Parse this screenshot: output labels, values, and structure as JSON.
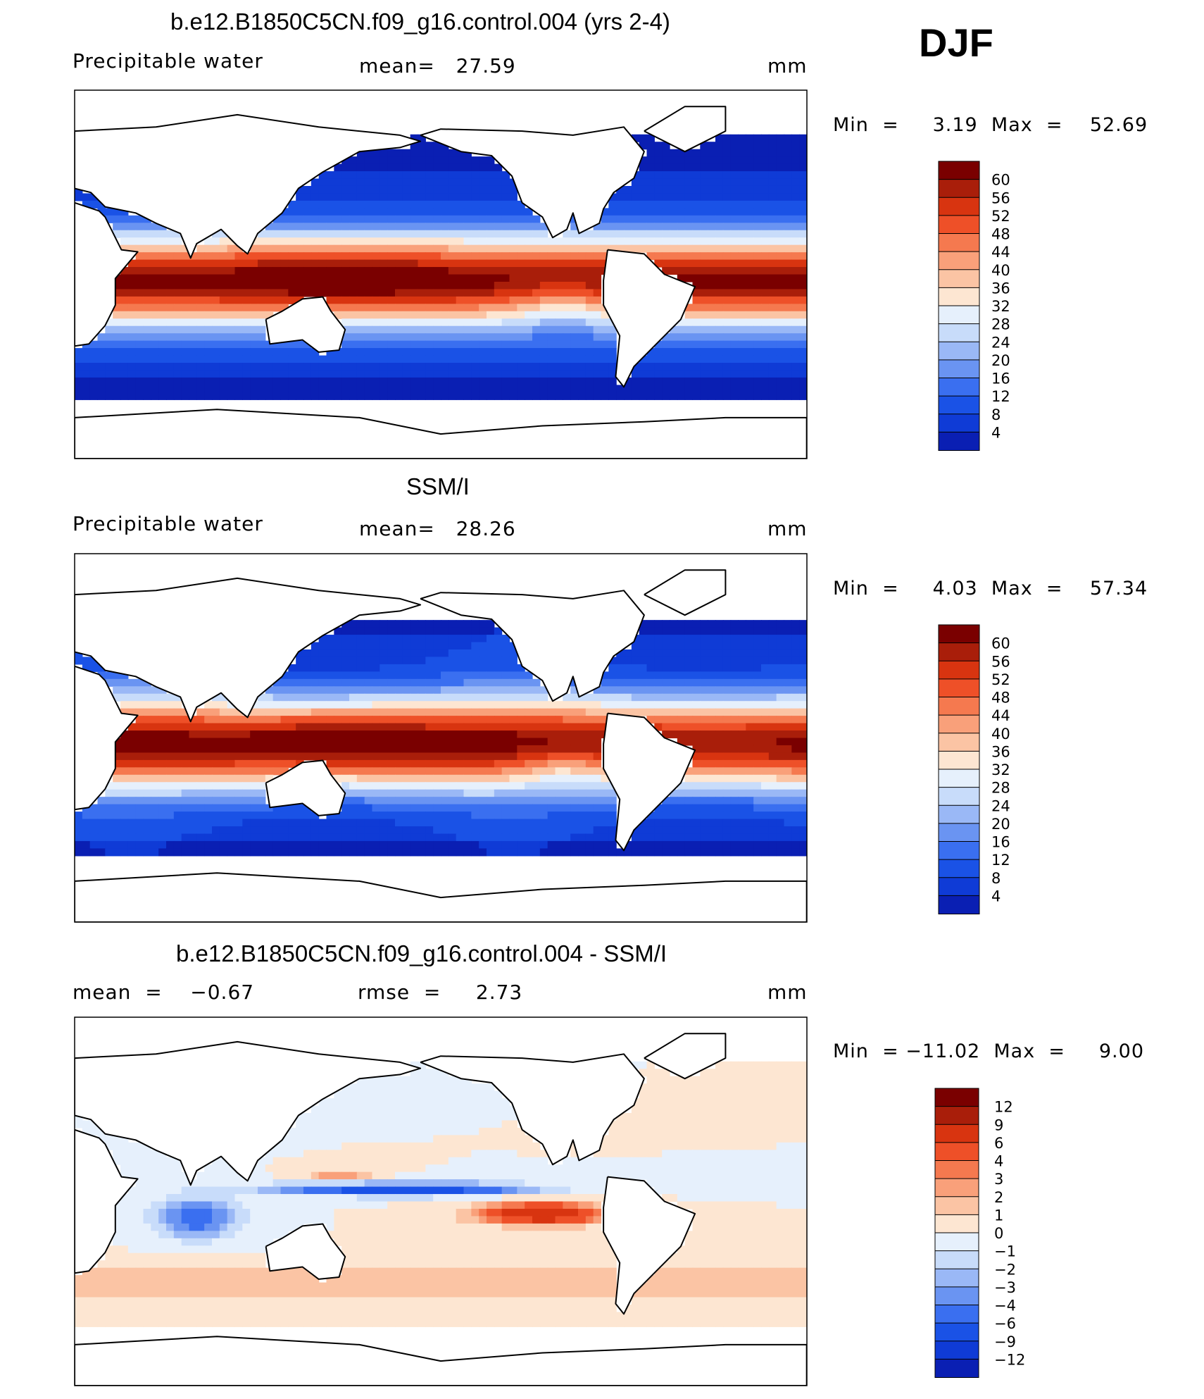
{
  "season": "DJF",
  "panels": [
    {
      "title": "b.e12.B1850C5CN.f09_g16.control.004 (yrs 2-4)",
      "left_label": "Precipitable water",
      "center_label": "mean=   27.59",
      "units": "mm",
      "minmax": "Min  =     3.19  Max  =    52.69",
      "colorbar_labels": [
        "60",
        "56",
        "52",
        "48",
        "44",
        "40",
        "36",
        "32",
        "28",
        "24",
        "20",
        "16",
        "12",
        "8",
        "4"
      ]
    },
    {
      "title": "SSM/I",
      "left_label": "Precipitable water",
      "center_label": "mean=   28.26",
      "units": "mm",
      "minmax": "Min  =     4.03  Max  =    57.34",
      "colorbar_labels": [
        "60",
        "56",
        "52",
        "48",
        "44",
        "40",
        "36",
        "32",
        "28",
        "24",
        "20",
        "16",
        "12",
        "8",
        "4"
      ]
    },
    {
      "title": "b.e12.B1850C5CN.f09_g16.control.004 - SSM/I",
      "left_label": "mean  =    −0.67",
      "center_label": "rmse  =     2.73",
      "units": "mm",
      "minmax": "Min  = −11.02  Max  =     9.00",
      "colorbar_labels": [
        "12",
        "9",
        "6",
        "4",
        "3",
        "2",
        "1",
        "0",
        "−1",
        "−2",
        "−3",
        "−4",
        "−6",
        "−9",
        "−12"
      ]
    }
  ],
  "colors": {
    "abs_scale": [
      "#000080",
      "#0a1fb3",
      "#0f3bd6",
      "#1a52e6",
      "#3a6ff0",
      "#6a94f2",
      "#9ab8f6",
      "#c8dcfa",
      "#e6f0fc",
      "#fde6d2",
      "#fbc4a4",
      "#f9a07a",
      "#f5794f",
      "#ee5028",
      "#d83410",
      "#a91e0a",
      "#7a0000"
    ],
    "diff_scale": [
      "#000080",
      "#0a1fb3",
      "#0f3bd6",
      "#1a52e6",
      "#3a6ff0",
      "#6a94f2",
      "#9ab8f6",
      "#c8dcfa",
      "#e6f0fc",
      "#fde6d2",
      "#fbc4a4",
      "#f9a07a",
      "#f5794f",
      "#ee5028",
      "#d83410",
      "#a91e0a",
      "#7a0000"
    ],
    "land": "#ffffff",
    "coast": "#000000"
  }
}
